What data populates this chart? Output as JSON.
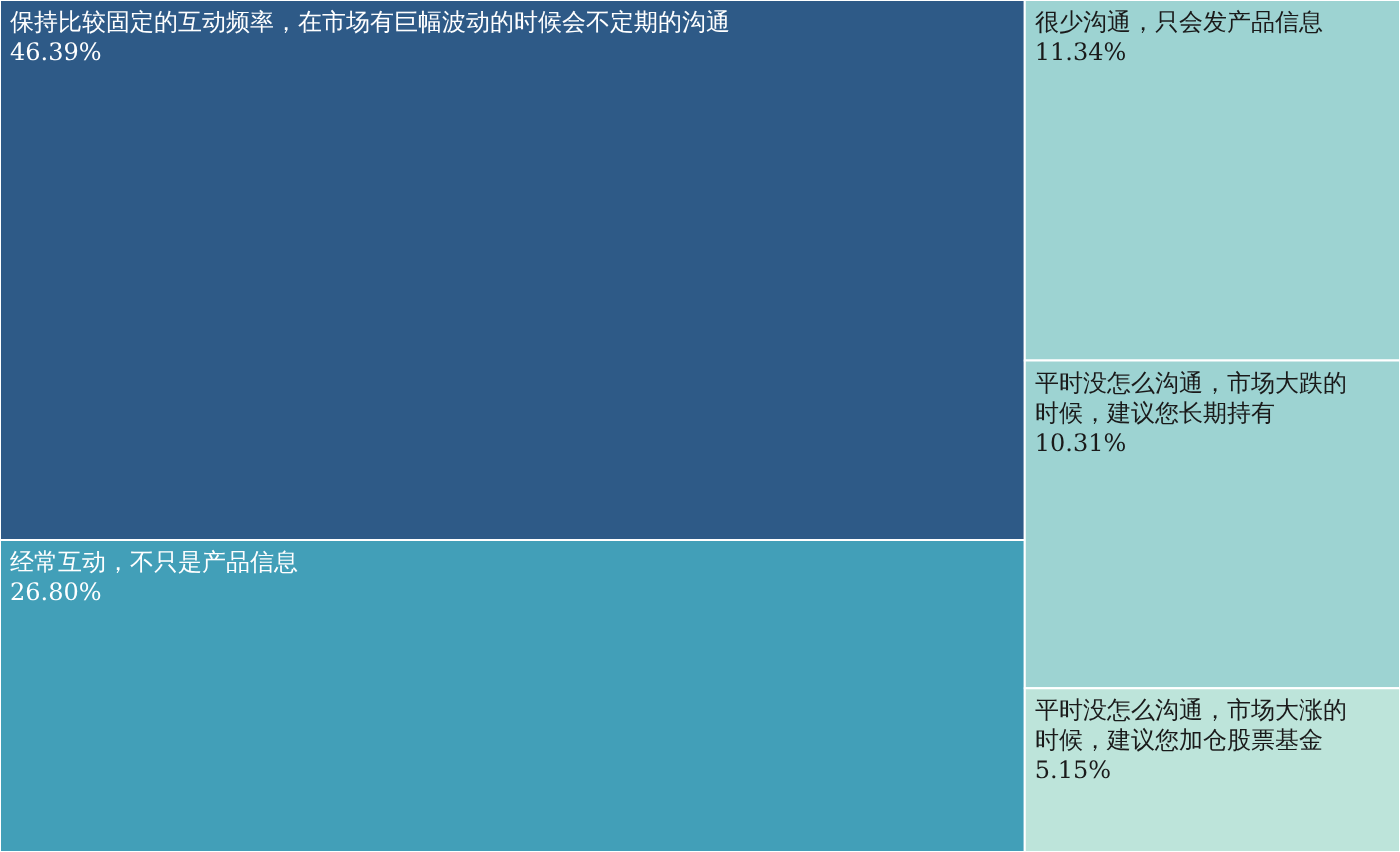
{
  "chart_data": {
    "type": "other",
    "categories": [
      "保持比较固定的互动频率，在市场有巨幅波动的时候会不定期的沟通",
      "经常互动，不只是产品信息",
      "很少沟通，只会发产品信息",
      "平时没怎么沟通，市场大跌的时候，建议您长期持有",
      "平时没怎么沟通，市场大涨的时候，建议您加仓股票基金"
    ],
    "values": [
      46.39,
      26.8,
      11.34,
      10.31,
      5.15
    ],
    "value_labels": [
      "46.39%",
      "26.80%",
      "11.34%",
      "10.31%",
      "5.15%"
    ],
    "colors": [
      "#2e5a87",
      "#429fb8",
      "#9dd3d2",
      "#9dd3d2",
      "#bde4da"
    ]
  }
}
